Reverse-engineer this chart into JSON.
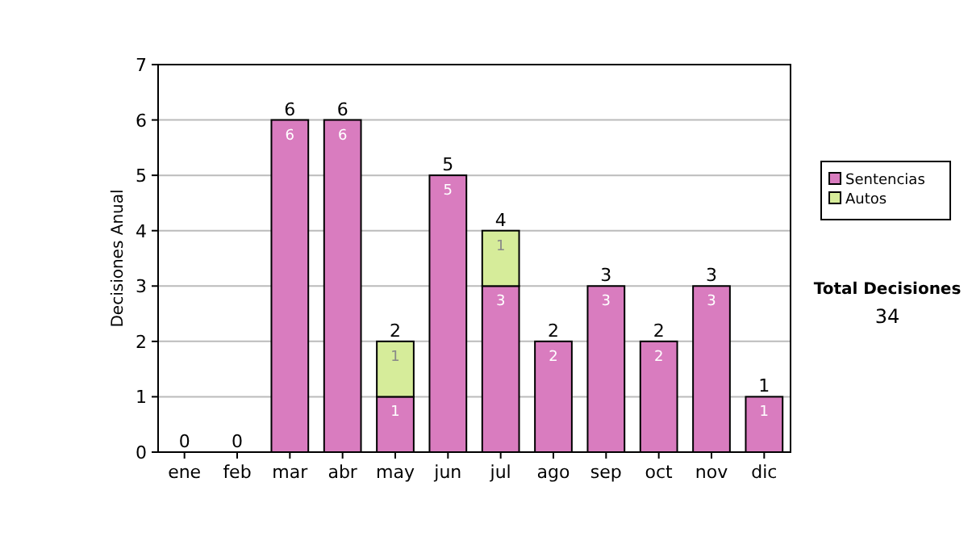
{
  "chart_data": {
    "type": "bar",
    "stacked": true,
    "ylabel": "Decisiones Anual",
    "categories": [
      "ene",
      "feb",
      "mar",
      "abr",
      "may",
      "jun",
      "jul",
      "ago",
      "sep",
      "oct",
      "nov",
      "dic"
    ],
    "series": [
      {
        "name": "Sentencias",
        "color": "#d97cbf",
        "values": [
          0,
          0,
          6,
          6,
          1,
          5,
          3,
          2,
          3,
          2,
          3,
          1
        ],
        "value_labels": [
          null,
          null,
          "6",
          "6",
          "1",
          "5",
          "3",
          "2",
          "3",
          "2",
          "3",
          "1"
        ]
      },
      {
        "name": "Autos",
        "color": "#d6ec9a",
        "values": [
          0,
          0,
          0,
          0,
          1,
          0,
          1,
          0,
          0,
          0,
          0,
          0
        ],
        "value_labels": [
          null,
          null,
          null,
          null,
          "1",
          null,
          "1",
          null,
          null,
          null,
          null,
          null
        ]
      }
    ],
    "totals": [
      "0",
      "0",
      "6",
      "6",
      "2",
      "5",
      "4",
      "2",
      "3",
      "2",
      "3",
      "1"
    ],
    "ylim": [
      0,
      7
    ],
    "yticks": [
      0,
      1,
      2,
      3,
      4,
      5,
      6,
      7
    ],
    "grid": "y",
    "legend": "right",
    "annotations": [
      "Total Decisiones",
      "34"
    ]
  }
}
